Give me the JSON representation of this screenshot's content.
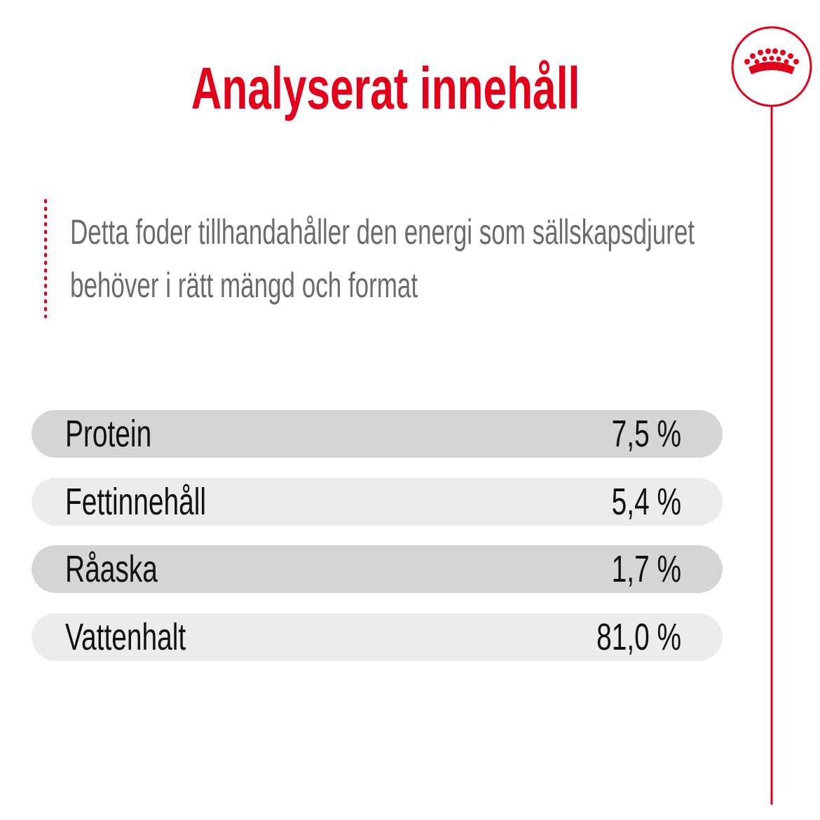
{
  "header": {
    "title": "Analyserat innehåll"
  },
  "description": [
    "Detta foder tillhandahåller den energi som sällskapsdjuret",
    "behöver i rätt mängd och format"
  ],
  "table": {
    "rows": [
      [
        "Protein",
        "7,5 %"
      ],
      [
        "Fettinnehåll",
        "5,4 %"
      ],
      [
        "Råaska",
        "1,7 %"
      ],
      [
        "Vattenhalt",
        "81,0 %"
      ]
    ]
  }
}
